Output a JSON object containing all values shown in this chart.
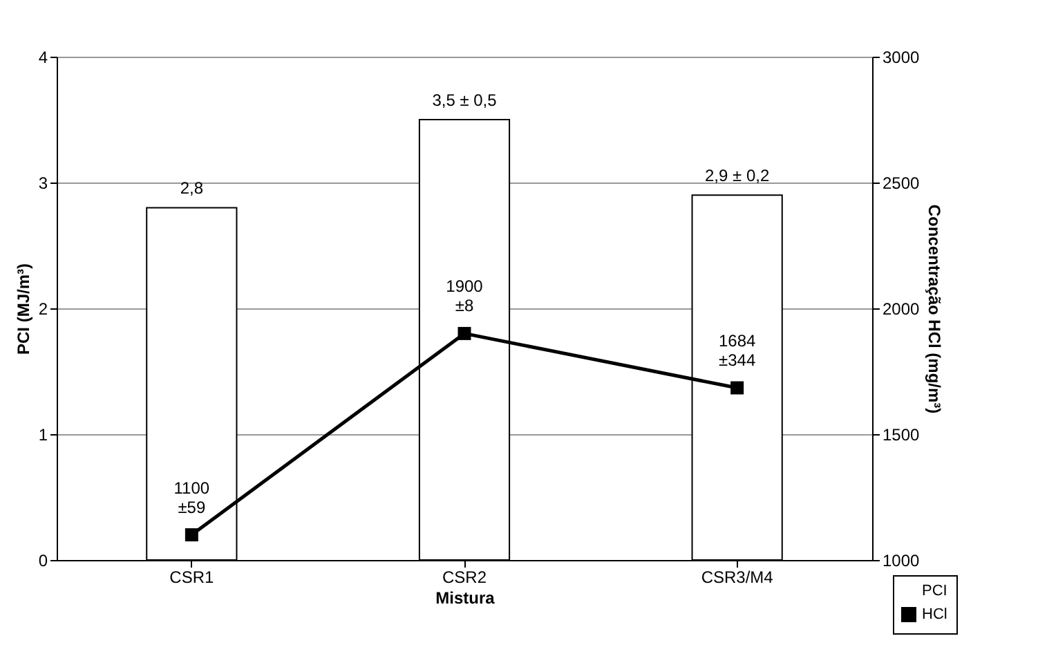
{
  "chart_data": {
    "type": "bar",
    "xlabel": "Mistura",
    "ylabel": "PCI (MJ/m³)",
    "y2label": "Concentração HCl (mg/m³)",
    "categories": [
      "CSR1",
      "CSR2",
      "CSR3/M4"
    ],
    "series": [
      {
        "name": "PCI",
        "color": "#ffffff",
        "values": [
          2.8,
          3.5,
          2.9
        ],
        "value_labels": [
          "2,8",
          "3,5 ± 0,5",
          "2,9 ± 0,2"
        ]
      },
      {
        "name": "HCl",
        "type": "line",
        "axis": "y2",
        "color": "#000000",
        "values": [
          1100,
          1900,
          1684
        ],
        "value_labels": [
          "1100\n±59",
          "1900\n±8",
          "1684\n±344"
        ]
      }
    ],
    "ylim": [
      0,
      4
    ],
    "yticks": [
      0,
      1,
      2,
      3,
      4
    ],
    "y2lim": [
      1000,
      3000
    ],
    "y2ticks": [
      1000,
      1500,
      2000,
      2500,
      3000
    ],
    "grid": "y",
    "legend": "bottom right",
    "marker": "square",
    "line_style": "solid"
  }
}
